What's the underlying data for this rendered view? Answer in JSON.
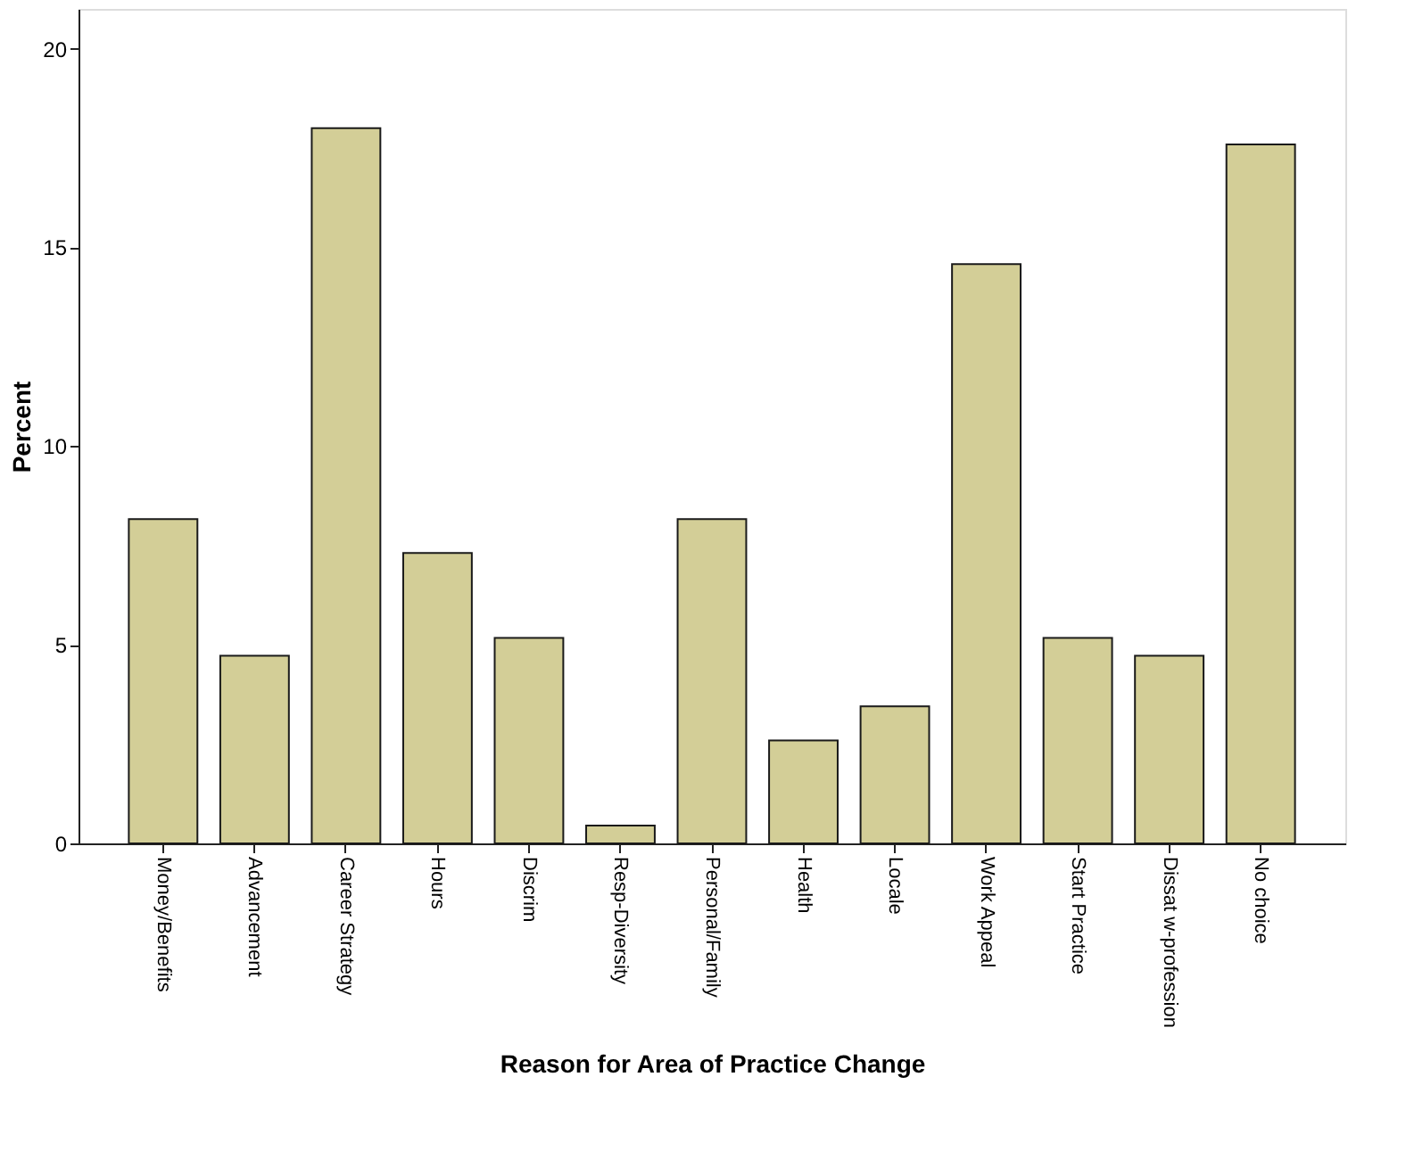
{
  "chart_data": {
    "type": "bar",
    "xlabel": "Reason for Area of Practice Change",
    "ylabel": "Percent",
    "categories": [
      "Money/Benefits",
      "Advancement",
      "Career Strategy",
      "Hours",
      "Discrim",
      "Resp-Diversity",
      "Personal/Family",
      "Health",
      "Locale",
      "Work Appeal",
      "Start Practice",
      "Dissat w-profession",
      "No choice"
    ],
    "values": [
      8.16,
      4.72,
      18.0,
      7.31,
      5.17,
      0.45,
      8.16,
      2.59,
      3.45,
      14.58,
      5.17,
      4.72,
      17.59
    ],
    "color": "#d3ce97",
    "ylim": [
      0,
      21
    ],
    "yticks": [
      0,
      5,
      10,
      15,
      20
    ],
    "grid": false
  }
}
